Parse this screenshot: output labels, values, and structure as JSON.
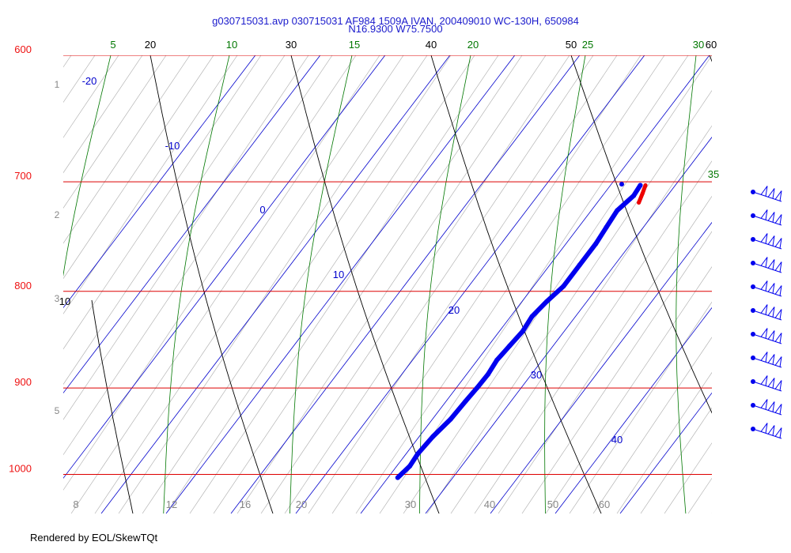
{
  "chart_data": {
    "type": "skew-t",
    "title": "g030715031.avp 030715031 AF984 1509A IVAN, 200409010 WC-130H, 650984",
    "subtitle": "N16.9300 W75.7500",
    "footer": "Rendered by EOL/SkewTQt",
    "pressure_levels": [
      {
        "p": 600,
        "label": "600"
      },
      {
        "p": 700,
        "label": "700"
      },
      {
        "p": 800,
        "label": "800"
      },
      {
        "p": 900,
        "label": "900"
      },
      {
        "p": 1000,
        "label": "1000"
      }
    ],
    "dry_adiabats": [
      {
        "value": 10,
        "label": "10"
      },
      {
        "value": 20,
        "label": "20"
      },
      {
        "value": 30,
        "label": "30"
      },
      {
        "value": 40,
        "label": "40"
      },
      {
        "value": 50,
        "label": "50"
      },
      {
        "value": 60,
        "label": "60"
      }
    ],
    "moist_adiabats": [
      {
        "value": 5,
        "label": "5"
      },
      {
        "value": 10,
        "label": "10"
      },
      {
        "value": 15,
        "label": "15"
      },
      {
        "value": 20,
        "label": "20"
      },
      {
        "value": 25,
        "label": "25"
      },
      {
        "value": 30,
        "label": "30"
      },
      {
        "value": 35,
        "label": "35"
      }
    ],
    "isotherms": [
      {
        "value": -20,
        "label": "-20"
      },
      {
        "value": -10,
        "label": "-10"
      },
      {
        "value": 0,
        "label": "0"
      },
      {
        "value": 10,
        "label": "10"
      },
      {
        "value": 20,
        "label": "20"
      },
      {
        "value": 30,
        "label": "30"
      },
      {
        "value": 40,
        "label": "40"
      }
    ],
    "mixing_ratio_labels_left": [
      "1",
      "2",
      "3",
      "5"
    ],
    "mixing_ratio_labels_bottom": [
      "8",
      "12",
      "16",
      "20",
      "30",
      "40",
      "50",
      "60"
    ],
    "temperature_profile": [
      {
        "p": 1004,
        "t": 21.5
      },
      {
        "p": 990,
        "t": 22.0
      },
      {
        "p": 975,
        "t": 21.8
      },
      {
        "p": 955,
        "t": 22.1
      },
      {
        "p": 935,
        "t": 22.8
      },
      {
        "p": 915,
        "t": 23.0
      },
      {
        "p": 900,
        "t": 23.2
      },
      {
        "p": 885,
        "t": 23.3
      },
      {
        "p": 870,
        "t": 23.0
      },
      {
        "p": 855,
        "t": 23.3
      },
      {
        "p": 840,
        "t": 23.6
      },
      {
        "p": 825,
        "t": 23.3
      },
      {
        "p": 810,
        "t": 23.8
      },
      {
        "p": 795,
        "t": 24.6
      },
      {
        "p": 775,
        "t": 24.6
      },
      {
        "p": 755,
        "t": 24.6
      },
      {
        "p": 740,
        "t": 24.3
      },
      {
        "p": 725,
        "t": 24.0
      },
      {
        "p": 712,
        "t": 24.8
      },
      {
        "p": 703,
        "t": 24.6
      }
    ],
    "dewpoint_profile": [
      {
        "p": 718,
        "t": 26.4
      },
      {
        "p": 710,
        "t": 25.9
      },
      {
        "p": 703,
        "t": 25.4
      }
    ],
    "extra_point": {
      "p": 702,
      "t": 21.6
    },
    "wind_barbs_count": 11,
    "colors": {
      "isobar": "#dd0000",
      "isobar_label": "#ee1111",
      "dry_adiabat": "#000000",
      "moist_adiabat": "#007700",
      "isotherm": "#0000cc",
      "mixing_ratio": "#888888",
      "temperature": "#0000ee",
      "dewpoint": "#ee0000",
      "title": "#1a1acc"
    }
  }
}
